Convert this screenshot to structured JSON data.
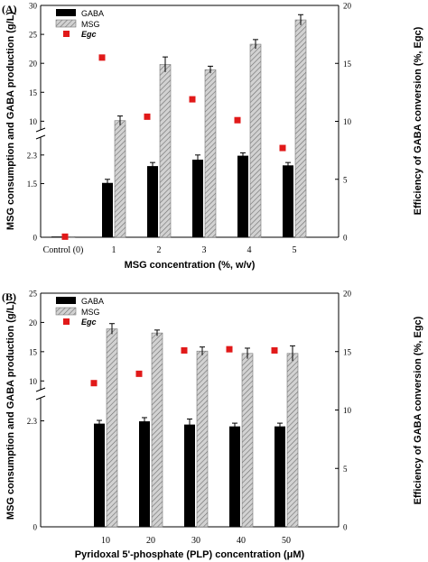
{
  "chart_data": [
    {
      "type": "bar",
      "panel_label": "(A)",
      "xlabel": "MSG concentration (%, w/v)",
      "ylabel_left": "MSG consumption and GABA production (g/L)",
      "ylabel_right": "Efficiency of GABA conversion (%, Egc)",
      "categories": [
        "Control (0)",
        "1",
        "2",
        "3",
        "4",
        "5"
      ],
      "left_axis": {
        "break": true,
        "lower_ticks": [
          "0",
          "1.5",
          "2.3"
        ],
        "upper_ticks": [
          "10",
          "15",
          "20",
          "25",
          "30"
        ],
        "lower_range": [
          0,
          2.8
        ],
        "upper_range": [
          8.5,
          30
        ]
      },
      "right_axis": {
        "range": [
          0,
          20
        ],
        "ticks": [
          "0",
          "5",
          "10",
          "15",
          "20"
        ]
      },
      "series": [
        {
          "name": "GABA",
          "style": "solid",
          "color": "#000000",
          "values": [
            0.02,
            1.52,
            1.99,
            2.17,
            2.28,
            2.01
          ],
          "errors": [
            0,
            0.1,
            0.1,
            0.13,
            0.08,
            0.08
          ]
        },
        {
          "name": "MSG",
          "style": "hatched",
          "color": "#c8c8c8",
          "values": [
            0.02,
            10.1,
            19.8,
            18.9,
            23.3,
            27.5
          ],
          "errors": [
            0,
            0.8,
            1.3,
            0.6,
            0.8,
            0.9
          ]
        },
        {
          "name": "Egc",
          "style": "marker",
          "color": "#e11919",
          "axis": "right",
          "values": [
            0.05,
            15.5,
            10.4,
            11.9,
            10.1,
            7.7
          ]
        }
      ],
      "legend": [
        "GABA",
        "MSG",
        "Egc"
      ],
      "legend_position": "top-left"
    },
    {
      "type": "bar",
      "panel_label": "(B)",
      "xlabel": "Pyridoxal 5'-phosphate (PLP) concentration (μM)",
      "ylabel_left": "MSG consumption and GABA production (g/L)",
      "ylabel_right": "Efficiency of GABA conversion (%, Egc)",
      "categories": [
        "10",
        "20",
        "30",
        "40",
        "50"
      ],
      "left_axis": {
        "break": true,
        "lower_ticks": [
          "0",
          "2.3"
        ],
        "upper_ticks": [
          "10",
          "15",
          "20",
          "25"
        ],
        "lower_range": [
          0,
          2.8
        ],
        "upper_range": [
          8.5,
          25
        ]
      },
      "right_axis": {
        "range": [
          0,
          20
        ],
        "ticks": [
          "0",
          "5",
          "10",
          "15",
          "20"
        ]
      },
      "series": [
        {
          "name": "GABA",
          "style": "solid",
          "color": "#000000",
          "values": [
            2.24,
            2.29,
            2.22,
            2.18,
            2.18
          ],
          "errors": [
            0.07,
            0.08,
            0.12,
            0.07,
            0.07
          ]
        },
        {
          "name": "MSG",
          "style": "hatched",
          "color": "#c8c8c8",
          "values": [
            18.9,
            18.2,
            15.1,
            14.7,
            14.7
          ],
          "errors": [
            0.9,
            0.5,
            0.7,
            0.9,
            1.3
          ]
        },
        {
          "name": "Egc",
          "style": "marker",
          "color": "#e11919",
          "axis": "right",
          "values": [
            12.3,
            13.1,
            15.1,
            15.2,
            15.1
          ]
        }
      ],
      "legend": [
        "GABA",
        "MSG",
        "Egc"
      ],
      "legend_position": "top-left"
    }
  ]
}
